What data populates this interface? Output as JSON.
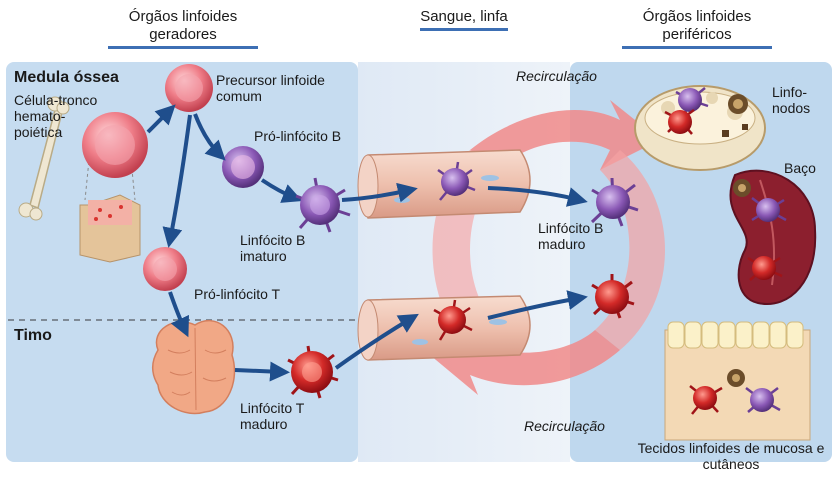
{
  "headers": {
    "generating": "Órgãos linfoides geradores",
    "blood": "Sangue, linfa",
    "peripheral": "Órgãos linfoides periféricos"
  },
  "regions": {
    "bone_marrow": "Medula óssea",
    "thymus": "Timo"
  },
  "cells": {
    "stem_cell": "Célula-tronco hemato-poiética",
    "common_precursor": "Precursor linfoide comum",
    "pro_b": "Pró-linfócito B",
    "immature_b": "Linfócito B imaturo",
    "pro_t": "Pró-linfócito T",
    "mature_t": "Linfócito T maduro",
    "mature_b": "Linfócito B maduro"
  },
  "peripheral_organs": {
    "lymph_nodes": "Linfo-nodos",
    "spleen": "Baço",
    "mucosal": "Tecidos linfoides de mucosa e cutâneos"
  },
  "arrows": {
    "recirc_top": "Recirculação",
    "recirc_bottom": "Recirculação"
  },
  "colors": {
    "left_panel": "#cfe2f3",
    "mid_panel": "#e6eef7",
    "right_panel": "#c9dff2",
    "b_cell": "#7a4aa0",
    "t_cell": "#c0141c",
    "precursor": "#e96a76",
    "recirculation": "#ef7b7b",
    "flow_arrow": "#1f4e8c"
  }
}
